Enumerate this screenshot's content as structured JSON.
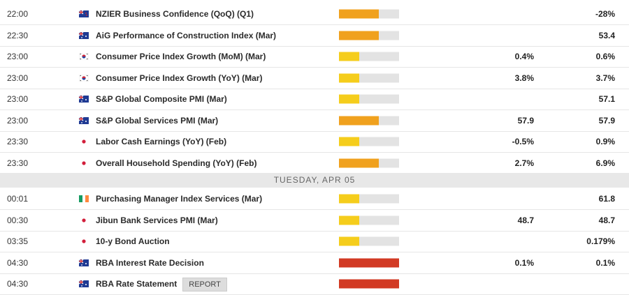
{
  "sections": [
    {
      "rows": [
        {
          "time": "22:00",
          "flag": "nz",
          "event": "NZIER Business Confidence (QoQ) (Q1)",
          "impact": 2,
          "impact_color": "#f0a11e",
          "consensus": null,
          "previous": "-28%"
        },
        {
          "time": "22:30",
          "flag": "au",
          "event": "AiG Performance of Construction Index (Mar)",
          "impact": 2,
          "impact_color": "#f0a11e",
          "consensus": null,
          "previous": "53.4"
        },
        {
          "time": "23:00",
          "flag": "kr",
          "event": "Consumer Price Index Growth (MoM) (Mar)",
          "impact": 1,
          "impact_color": "#f5cd1c",
          "consensus": "0.4%",
          "previous": "0.6%"
        },
        {
          "time": "23:00",
          "flag": "kr",
          "event": "Consumer Price Index Growth (YoY) (Mar)",
          "impact": 1,
          "impact_color": "#f5cd1c",
          "consensus": "3.8%",
          "previous": "3.7%"
        },
        {
          "time": "23:00",
          "flag": "au",
          "event": "S&P Global Composite PMI (Mar)",
          "impact": 1,
          "impact_color": "#f5cd1c",
          "consensus": null,
          "previous": "57.1"
        },
        {
          "time": "23:00",
          "flag": "au",
          "event": "S&P Global Services PMI (Mar)",
          "impact": 2,
          "impact_color": "#f0a11e",
          "consensus": "57.9",
          "previous": "57.9"
        },
        {
          "time": "23:30",
          "flag": "jp",
          "event": "Labor Cash Earnings (YoY) (Feb)",
          "impact": 1,
          "impact_color": "#f5cd1c",
          "consensus": "-0.5%",
          "previous": "0.9%"
        },
        {
          "time": "23:30",
          "flag": "jp",
          "event": "Overall Household Spending (YoY) (Feb)",
          "impact": 2,
          "impact_color": "#f0a11e",
          "consensus": "2.7%",
          "previous": "6.9%"
        }
      ]
    },
    {
      "day": "TUESDAY, APR 05",
      "rows": [
        {
          "time": "00:01",
          "flag": "ie",
          "event": "Purchasing Manager Index Services (Mar)",
          "impact": 1,
          "impact_color": "#f5cd1c",
          "consensus": null,
          "previous": "61.8"
        },
        {
          "time": "00:30",
          "flag": "jp",
          "event": "Jibun Bank Services PMI (Mar)",
          "impact": 1,
          "impact_color": "#f5cd1c",
          "consensus": "48.7",
          "previous": "48.7"
        },
        {
          "time": "03:35",
          "flag": "jp",
          "event": "10-y Bond Auction",
          "impact": 1,
          "impact_color": "#f5cd1c",
          "consensus": null,
          "previous": "0.179%"
        },
        {
          "time": "04:30",
          "flag": "au",
          "event": "RBA Interest Rate Decision",
          "impact": 3,
          "impact_color": "#d23a24",
          "consensus": "0.1%",
          "previous": "0.1%"
        },
        {
          "time": "04:30",
          "flag": "au",
          "event": "RBA Rate Statement",
          "button": "REPORT",
          "impact": 3,
          "impact_color": "#d23a24",
          "consensus": null,
          "previous": null
        }
      ]
    }
  ]
}
